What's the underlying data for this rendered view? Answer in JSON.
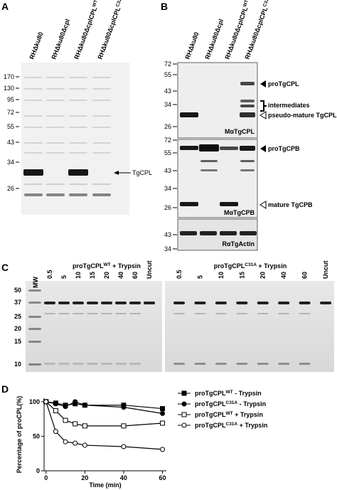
{
  "panels": {
    "A": {
      "label": "A",
      "lanes": [
        [
          "RHΔku80"
        ],
        [
          "RHΔku80Δcpl"
        ],
        [
          "RHΔku80ΔcplCPL",
          "WT"
        ],
        [
          "RHΔku80ΔcplCPL",
          "C31A"
        ]
      ],
      "markers": [
        170,
        130,
        95,
        72,
        55,
        43,
        34,
        26
      ],
      "band_label": "TgCPL"
    },
    "B": {
      "label": "B",
      "lanes": [
        [
          "RHΔku80"
        ],
        [
          "RHΔku80Δcpl"
        ],
        [
          "RHΔku80ΔcplCPL",
          "WT"
        ],
        [
          "RHΔku80ΔcplCPL",
          "C31A"
        ]
      ],
      "blots": [
        {
          "markers": [
            72,
            55,
            43,
            34,
            26
          ],
          "antibody": "MαTgCPL"
        },
        {
          "markers": [
            72,
            55,
            43,
            34,
            26
          ],
          "antibody": "MαTgCPB"
        },
        {
          "markers": [
            43,
            34
          ],
          "antibody": "RαTgActin"
        }
      ],
      "annotations": [
        "proTgCPL",
        "intermediates",
        "pseudo-mature TgCPL",
        "proTgCPB",
        "mature TgCPB"
      ]
    },
    "C": {
      "label": "C",
      "mw": "MW",
      "markers": [
        50,
        37,
        25,
        20,
        15,
        10
      ],
      "gels": [
        {
          "title": [
            "proTgCPL",
            "WT",
            " + Trypsin"
          ],
          "lanes": [
            "0.5",
            "5",
            "10",
            "15",
            "20",
            "40",
            "60",
            "Uncut"
          ]
        },
        {
          "title": [
            "proTgCPL",
            "C31A",
            " + Trypsin"
          ],
          "lanes": [
            "0.5",
            "5",
            "10",
            "15",
            "20",
            "40",
            "60",
            "Uncut"
          ]
        }
      ]
    },
    "D": {
      "label": "D"
    }
  },
  "chart_data": {
    "type": "line",
    "xlabel": "Time (min)",
    "ylabel": "Percentage of proCPL(%)",
    "x": [
      0,
      5,
      10,
      15,
      20,
      40,
      60
    ],
    "xlim": [
      -1,
      62
    ],
    "xticks": [
      0,
      20,
      40,
      60
    ],
    "ylim": [
      0,
      105
    ],
    "yticks": [
      0,
      50,
      100
    ],
    "series": [
      {
        "name": [
          "proTgCPL",
          "WT",
          " - Trypsin"
        ],
        "color": "#000000",
        "marker": "square",
        "filled": true,
        "values": [
          100,
          98,
          95,
          97,
          95,
          95,
          90
        ]
      },
      {
        "name": [
          "proTgCPL",
          "C31A",
          " - Trypsin"
        ],
        "color": "#000000",
        "marker": "circle",
        "filled": true,
        "values": [
          100,
          97,
          93,
          100,
          95,
          92,
          83
        ]
      },
      {
        "name": [
          "proTgCPL",
          "WT",
          " + Trypsin"
        ],
        "color": "#000000",
        "marker": "square",
        "filled": false,
        "values": [
          100,
          87,
          73,
          68,
          65,
          65,
          69
        ]
      },
      {
        "name": [
          "proTgCPL",
          "C31A",
          " + Trypsin"
        ],
        "color": "#000000",
        "marker": "circle",
        "filled": false,
        "values": [
          100,
          57,
          42,
          40,
          37,
          35,
          31
        ]
      }
    ]
  }
}
